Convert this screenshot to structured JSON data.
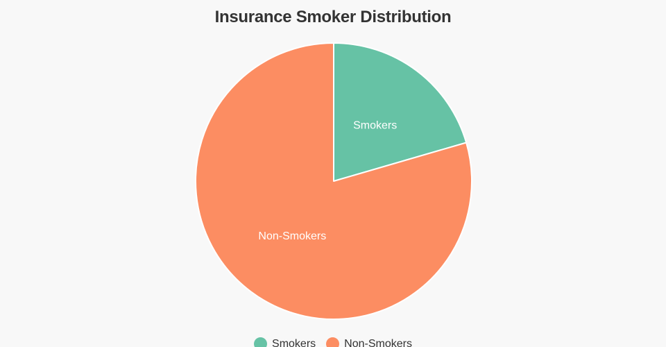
{
  "page": {
    "background": "#f8f8f8"
  },
  "chart_data": {
    "type": "pie",
    "title": "Insurance Smoker Distribution",
    "title_color": "#333333",
    "labels": [
      "Smokers",
      "Non-Smokers"
    ],
    "values": [
      20.5,
      79.5
    ],
    "value_unit": "percent",
    "colors": [
      "#66c2a5",
      "#fc8d62"
    ],
    "slice_border_color": "#ffffff",
    "slice_label_color": "#ffffff",
    "start_angle_deg": 90,
    "direction": "clockwise",
    "labels_inside_slices": true,
    "legend_position": "bottom-center"
  },
  "legend": {
    "text_color": "#333333",
    "items": [
      {
        "label": "Smokers",
        "color": "#66c2a5"
      },
      {
        "label": "Non-Smokers",
        "color": "#fc8d62"
      }
    ]
  }
}
